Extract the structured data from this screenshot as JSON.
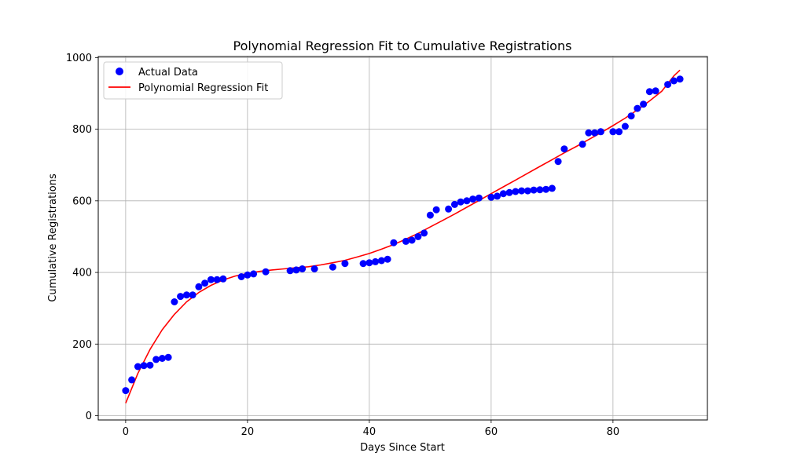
{
  "chart_data": {
    "type": "scatter",
    "title": "Polynomial Regression Fit to Cumulative Registrations",
    "xlabel": "Days Since Start",
    "ylabel": "Cumulative Registrations",
    "xlim": [
      -4.5,
      95.5
    ],
    "ylim": [
      -12,
      1003
    ],
    "xticks": [
      0,
      20,
      40,
      60,
      80
    ],
    "yticks": [
      0,
      200,
      400,
      600,
      800,
      1000
    ],
    "grid": true,
    "legend_position": "top-left",
    "series": [
      {
        "name": "Actual Data",
        "kind": "scatter",
        "color": "#0000ff",
        "points": [
          [
            0,
            70
          ],
          [
            1,
            100
          ],
          [
            2,
            137
          ],
          [
            3,
            140
          ],
          [
            4,
            141
          ],
          [
            5,
            157
          ],
          [
            6,
            160
          ],
          [
            7,
            163
          ],
          [
            8,
            318
          ],
          [
            9,
            333
          ],
          [
            10,
            337
          ],
          [
            11,
            337
          ],
          [
            12,
            360
          ],
          [
            13,
            370
          ],
          [
            14,
            380
          ],
          [
            15,
            380
          ],
          [
            16,
            382
          ],
          [
            19,
            388
          ],
          [
            20,
            393
          ],
          [
            21,
            396
          ],
          [
            23,
            402
          ],
          [
            27,
            405
          ],
          [
            28,
            407
          ],
          [
            29,
            410
          ],
          [
            31,
            410
          ],
          [
            34,
            415
          ],
          [
            36,
            425
          ],
          [
            39,
            425
          ],
          [
            40,
            427
          ],
          [
            41,
            430
          ],
          [
            42,
            433
          ],
          [
            43,
            437
          ],
          [
            44,
            483
          ],
          [
            46,
            487
          ],
          [
            47,
            490
          ],
          [
            48,
            500
          ],
          [
            49,
            510
          ],
          [
            50,
            560
          ],
          [
            51,
            575
          ],
          [
            53,
            577
          ],
          [
            54,
            590
          ],
          [
            55,
            597
          ],
          [
            56,
            600
          ],
          [
            57,
            605
          ],
          [
            58,
            608
          ],
          [
            60,
            610
          ],
          [
            61,
            613
          ],
          [
            62,
            620
          ],
          [
            63,
            623
          ],
          [
            64,
            626
          ],
          [
            65,
            628
          ],
          [
            66,
            628
          ],
          [
            67,
            630
          ],
          [
            68,
            631
          ],
          [
            69,
            632
          ],
          [
            70,
            635
          ],
          [
            71,
            710
          ],
          [
            72,
            745
          ],
          [
            75,
            758
          ],
          [
            76,
            790
          ],
          [
            77,
            790
          ],
          [
            78,
            793
          ],
          [
            80,
            793
          ],
          [
            81,
            793
          ],
          [
            82,
            808
          ],
          [
            83,
            837
          ],
          [
            84,
            858
          ],
          [
            85,
            870
          ],
          [
            86,
            905
          ],
          [
            87,
            907
          ],
          [
            89,
            925
          ],
          [
            90,
            935
          ],
          [
            91,
            940
          ]
        ]
      },
      {
        "name": "Polynomial Regression Fit",
        "kind": "line",
        "color": "#ff0000",
        "points": [
          [
            0,
            35
          ],
          [
            2,
            118
          ],
          [
            4,
            185
          ],
          [
            6,
            240
          ],
          [
            8,
            283
          ],
          [
            10,
            318
          ],
          [
            12,
            344
          ],
          [
            14,
            364
          ],
          [
            16,
            379
          ],
          [
            18,
            390
          ],
          [
            20,
            397
          ],
          [
            22,
            403
          ],
          [
            24,
            407
          ],
          [
            26,
            410
          ],
          [
            28,
            413
          ],
          [
            30,
            416
          ],
          [
            32,
            421
          ],
          [
            34,
            427
          ],
          [
            36,
            434
          ],
          [
            38,
            443
          ],
          [
            40,
            453
          ],
          [
            42,
            465
          ],
          [
            44,
            478
          ],
          [
            46,
            493
          ],
          [
            48,
            509
          ],
          [
            50,
            527
          ],
          [
            52,
            545
          ],
          [
            54,
            563
          ],
          [
            56,
            582
          ],
          [
            58,
            601
          ],
          [
            60,
            620
          ],
          [
            62,
            639
          ],
          [
            64,
            658
          ],
          [
            66,
            677
          ],
          [
            68,
            696
          ],
          [
            70,
            715
          ],
          [
            72,
            734
          ],
          [
            74,
            752
          ],
          [
            76,
            771
          ],
          [
            78,
            790
          ],
          [
            80,
            810
          ],
          [
            82,
            831
          ],
          [
            84,
            854
          ],
          [
            86,
            879
          ],
          [
            88,
            906
          ],
          [
            90,
            949
          ],
          [
            91,
            965
          ]
        ]
      }
    ]
  }
}
